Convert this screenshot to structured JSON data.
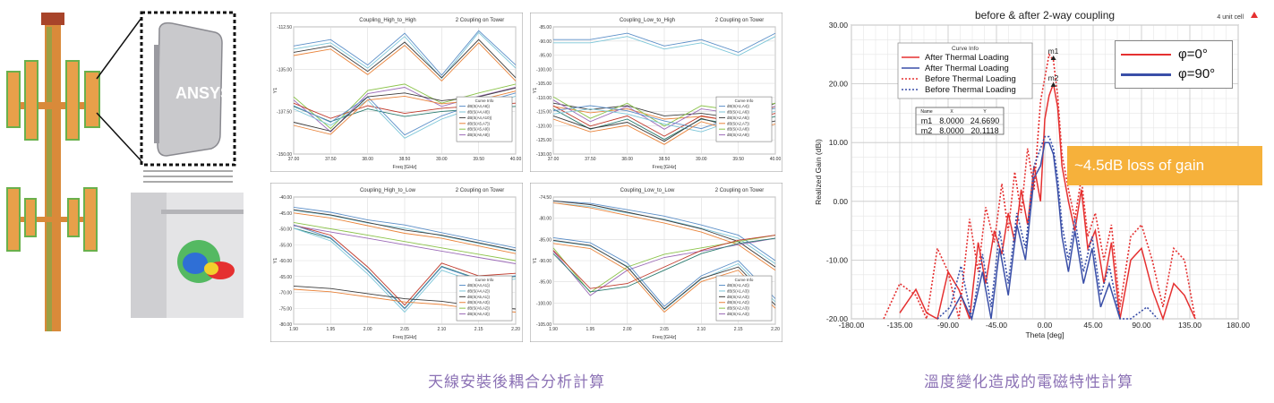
{
  "captions": {
    "left": "天線安裝後耦合分析計算",
    "right": "溫度變化造成的電磁特性計算"
  },
  "illustration": {
    "logo_text": "ANSYS"
  },
  "colors": {
    "caption": "#8c72b5",
    "callout": "#f6b13b",
    "red": "#e53030",
    "blue": "#3a4fa8"
  },
  "mini_charts": [
    {
      "id": "ch1",
      "title": "Coupling_High_to_High",
      "subtitle": "2 Coupling on Tower",
      "xlabel": "Freq [GHz]",
      "ylabel": "Y1",
      "yticks": [
        "-112.50",
        "-135.00",
        "-137.50",
        "-150.00"
      ],
      "xticks": [
        "37.00",
        "37.50",
        "38.00",
        "38.50",
        "39.00",
        "39.50",
        "40.00"
      ],
      "legend_title": "Curve Info",
      "legend_items": [
        "dB(S(A4,A6))",
        "dB(S(A4,A8))",
        "dB(S(A4,A10))",
        "dB(S(A5,A7))",
        "dB(S(A5,A9))",
        "dB(S(A6,A8))"
      ]
    },
    {
      "id": "ch2",
      "title": "Coupling_Low_to_High",
      "subtitle": "2 Coupling on Tower",
      "xlabel": "Freq [GHz]",
      "ylabel": "Y1",
      "yticks": [
        "-85.00",
        "-90.00",
        "-95.00",
        "-100.00",
        "-105.00",
        "-110.00",
        "-115.00",
        "-120.00",
        "-125.00",
        "-130.00"
      ],
      "xticks": [
        "37.00",
        "37.50",
        "38.00",
        "38.50",
        "39.00",
        "39.50",
        "40.00"
      ],
      "legend_title": "Curve Info",
      "legend_items": [
        "dB(S(A1,A4))",
        "dB(S(A1,A6))",
        "dB(S(A2,A5))",
        "dB(S(A2,A7))",
        "dB(S(A3,A8))",
        "dB(S(A3,A9))"
      ]
    },
    {
      "id": "ch3",
      "title": "Coupling_High_to_Low",
      "subtitle": "2 Coupling on Tower",
      "xlabel": "Freq [GHz]",
      "ylabel": "Y1",
      "yticks": [
        "-40.00",
        "-45.00",
        "-50.00",
        "-55.00",
        "-60.00",
        "-65.00",
        "-70.00",
        "-75.00",
        "-80.00"
      ],
      "xticks": [
        "1.90",
        "1.95",
        "2.00",
        "2.05",
        "2.10",
        "2.15",
        "2.20"
      ],
      "legend_title": "Curve Info",
      "legend_items": [
        "dB(S(A4,A1))",
        "dB(S(A4,A2))",
        "dB(S(A5,A1))",
        "dB(S(A5,A3))",
        "dB(S(A6,A2))",
        "dB(S(A6,A3))"
      ]
    },
    {
      "id": "ch4",
      "title": "Coupling_Low_to_Low",
      "subtitle": "2 Coupling on Tower",
      "xlabel": "Freq [GHz]",
      "ylabel": "Y1",
      "yticks": [
        "-74.50",
        "-80.00",
        "-85.00",
        "-90.00",
        "-95.00",
        "-100.00",
        "-105.00"
      ],
      "xticks": [
        "1.90",
        "1.95",
        "2.00",
        "2.05",
        "2.10",
        "2.15",
        "2.20"
      ],
      "legend_title": "Curve Info",
      "legend_items": [
        "dB(S(A1,A2))",
        "dB(S(A1,A3))",
        "dB(S(A2,A3))",
        "dB(S(A1,A2))",
        "dB(S(A2,A3))",
        "dB(S(A1,A3))"
      ]
    }
  ],
  "chart_data": {
    "type": "line",
    "title": "before & after 2-way coupling",
    "corner_label": "4 unit cell",
    "xlabel": "Theta [deg]",
    "ylabel": "Realized Gain (dBi)",
    "xlim": [
      -180,
      180
    ],
    "ylim": [
      -20,
      30
    ],
    "xticks": [
      "-180.00",
      "-135.00",
      "-90.00",
      "-45.00",
      "0.00",
      "45.00",
      "90.00",
      "135.00",
      "180.00"
    ],
    "yticks": [
      "30.00",
      "20.00",
      "10.00",
      "0.00",
      "-10.00",
      "-20.00"
    ],
    "grid": true,
    "curve_info_title": "Curve Info",
    "curve_info": [
      {
        "label": "After Thermal Loading",
        "color": "#e53030",
        "dash": false
      },
      {
        "label": "After Thermal Loading",
        "color": "#3a4fa8",
        "dash": false
      },
      {
        "label": "Before Thermal Loading",
        "color": "#e53030",
        "dash": true
      },
      {
        "label": "Before Thermal Loading",
        "color": "#3a4fa8",
        "dash": true
      }
    ],
    "phi_legend": [
      {
        "label": "φ=0°",
        "color": "#e53030"
      },
      {
        "label": "φ=90°",
        "color": "#3a4fa8"
      }
    ],
    "markers_table": {
      "headers": [
        "Name",
        "X",
        "Y"
      ],
      "rows": [
        [
          "m1",
          "8.0000",
          "24.6690"
        ],
        [
          "m2",
          "8.0000",
          "20.1118"
        ]
      ]
    },
    "markers": [
      {
        "name": "m1",
        "x": 8,
        "y": 24.669
      },
      {
        "name": "m2",
        "x": 8,
        "y": 20.1118
      }
    ],
    "callout": "~4.5dB loss of gain",
    "series": [
      {
        "name": "After Thermal Loading",
        "color": "#e53030",
        "dash": false,
        "x": [
          -135,
          -120,
          -110,
          -100,
          -90,
          -80,
          -70,
          -62,
          -55,
          -47,
          -40,
          -34,
          -28,
          -22,
          -16,
          -10,
          -4,
          0,
          4,
          8,
          12,
          16,
          22,
          28,
          34,
          40,
          47,
          55,
          62,
          70,
          80,
          90,
          100,
          110,
          120,
          130,
          140
        ],
        "y": [
          -19,
          -15,
          -19,
          -20,
          -12,
          -15,
          -20,
          -7,
          -14,
          -5,
          -9,
          -2,
          -7,
          2,
          -4,
          6,
          0,
          14,
          18,
          20,
          16,
          6,
          0,
          -5,
          2,
          -8,
          -5,
          -14,
          -7,
          -20,
          -10,
          -8,
          -15,
          -20,
          -14,
          -16,
          -20
        ]
      },
      {
        "name": "After Thermal Loading",
        "color": "#3a4fa8",
        "dash": false,
        "x": [
          -90,
          -78,
          -68,
          -58,
          -50,
          -42,
          -34,
          -26,
          -18,
          -10,
          -4,
          0,
          4,
          8,
          12,
          16,
          22,
          28,
          36,
          44,
          52,
          60,
          70
        ],
        "y": [
          -20,
          -16,
          -20,
          -12,
          -20,
          -8,
          -16,
          -4,
          -10,
          4,
          6,
          10,
          10,
          8,
          2,
          -6,
          -12,
          -5,
          -14,
          -8,
          -18,
          -14,
          -20
        ]
      },
      {
        "name": "Before Thermal Loading",
        "color": "#e53030",
        "dash": true,
        "x": [
          -150,
          -135,
          -120,
          -110,
          -100,
          -90,
          -80,
          -70,
          -62,
          -55,
          -47,
          -40,
          -34,
          -28,
          -22,
          -16,
          -10,
          -4,
          0,
          4,
          8,
          12,
          16,
          22,
          28,
          34,
          40,
          47,
          55,
          62,
          70,
          80,
          90,
          100,
          110,
          120,
          130,
          140
        ],
        "y": [
          -20,
          -14,
          -16,
          -20,
          -8,
          -12,
          -20,
          -3,
          -12,
          -1,
          -7,
          3,
          -5,
          5,
          -2,
          9,
          2,
          17,
          21,
          25,
          24,
          18,
          8,
          2,
          -3,
          4,
          -6,
          -2,
          -10,
          -4,
          -18,
          -6,
          -4,
          -10,
          -18,
          -8,
          -10,
          -20
        ]
      },
      {
        "name": "Before Thermal Loading",
        "color": "#3a4fa8",
        "dash": true,
        "x": [
          -100,
          -88,
          -78,
          -68,
          -58,
          -50,
          -42,
          -34,
          -26,
          -18,
          -10,
          -4,
          0,
          4,
          8,
          12,
          16,
          22,
          28,
          36,
          44,
          52,
          60,
          70,
          80,
          95,
          105
        ],
        "y": [
          -20,
          -18,
          -11,
          -20,
          -9,
          -18,
          -5,
          -14,
          -2,
          -8,
          6,
          9,
          11,
          11,
          9,
          4,
          -4,
          -10,
          -3,
          -12,
          -6,
          -16,
          -11,
          -20,
          -20,
          -18,
          -20
        ]
      }
    ]
  }
}
